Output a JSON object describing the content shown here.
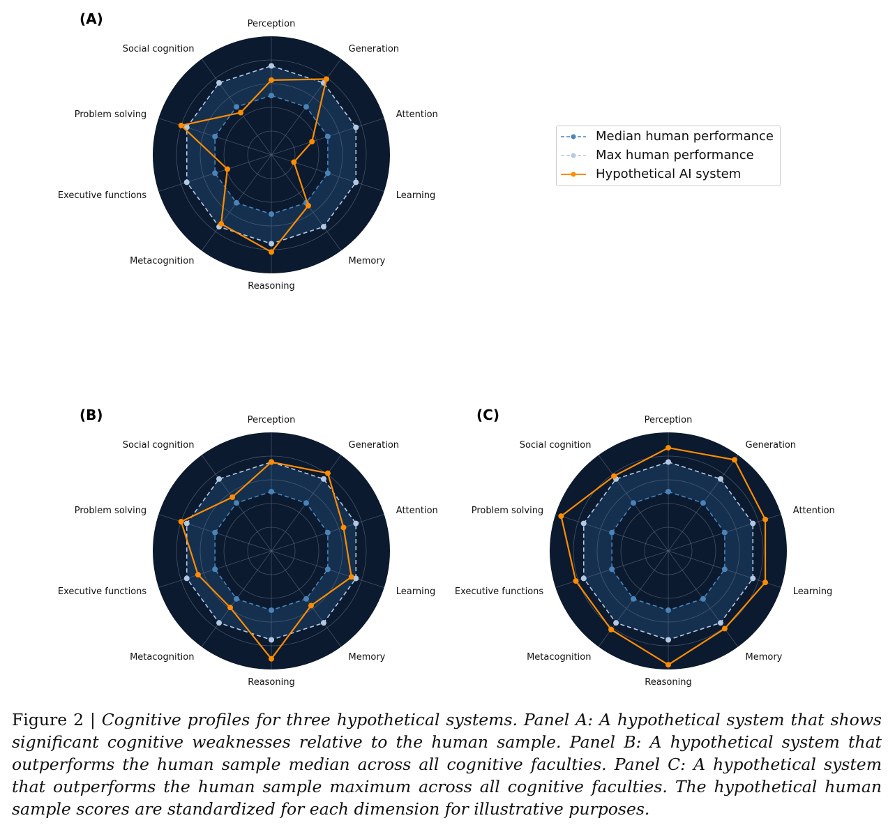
{
  "chart_data": [
    {
      "type": "radar",
      "panel": "(A)",
      "axes": [
        "Perception",
        "Generation",
        "Attention",
        "Learning",
        "Memory",
        "Reasoning",
        "Metacognition",
        "Executive functions",
        "Problem solving",
        "Social cognition"
      ],
      "rlim": [
        0,
        1
      ],
      "grid_rings": [
        0.2,
        0.4,
        0.6,
        0.8
      ],
      "series": [
        {
          "name": "Median human performance",
          "values": [
            0.5,
            0.5,
            0.5,
            0.5,
            0.5,
            0.5,
            0.5,
            0.5,
            0.5,
            0.5
          ]
        },
        {
          "name": "Max human performance",
          "values": [
            0.75,
            0.75,
            0.75,
            0.75,
            0.75,
            0.75,
            0.75,
            0.75,
            0.75,
            0.75
          ]
        },
        {
          "name": "Hypothetical AI system",
          "values": [
            0.63,
            0.79,
            0.36,
            0.2,
            0.53,
            0.82,
            0.72,
            0.39,
            0.8,
            0.44
          ]
        }
      ]
    },
    {
      "type": "radar",
      "panel": "(B)",
      "axes": [
        "Perception",
        "Generation",
        "Attention",
        "Learning",
        "Memory",
        "Reasoning",
        "Metacognition",
        "Executive functions",
        "Problem solving",
        "Social cognition"
      ],
      "rlim": [
        0,
        1
      ],
      "grid_rings": [
        0.2,
        0.4,
        0.6,
        0.8
      ],
      "series": [
        {
          "name": "Median human performance",
          "values": [
            0.5,
            0.5,
            0.5,
            0.5,
            0.5,
            0.5,
            0.5,
            0.5,
            0.5,
            0.5
          ]
        },
        {
          "name": "Max human performance",
          "values": [
            0.75,
            0.75,
            0.75,
            0.75,
            0.75,
            0.75,
            0.75,
            0.75,
            0.75,
            0.75
          ]
        },
        {
          "name": "Hypothetical AI system",
          "values": [
            0.75,
            0.81,
            0.64,
            0.71,
            0.57,
            0.91,
            0.59,
            0.65,
            0.8,
            0.56
          ]
        }
      ]
    },
    {
      "type": "radar",
      "panel": "(C)",
      "axes": [
        "Perception",
        "Generation",
        "Attention",
        "Learning",
        "Memory",
        "Reasoning",
        "Metacognition",
        "Executive functions",
        "Problem solving",
        "Social cognition"
      ],
      "rlim": [
        0,
        1
      ],
      "grid_rings": [
        0.2,
        0.4,
        0.6,
        0.8
      ],
      "series": [
        {
          "name": "Median human performance",
          "values": [
            0.5,
            0.5,
            0.5,
            0.5,
            0.5,
            0.5,
            0.5,
            0.5,
            0.5,
            0.5
          ]
        },
        {
          "name": "Max human performance",
          "values": [
            0.75,
            0.75,
            0.75,
            0.75,
            0.75,
            0.75,
            0.75,
            0.75,
            0.75,
            0.75
          ]
        },
        {
          "name": "Hypothetical AI system",
          "values": [
            0.87,
            0.95,
            0.86,
            0.86,
            0.81,
            0.96,
            0.82,
            0.82,
            0.95,
            0.78
          ]
        }
      ]
    }
  ],
  "legend": {
    "placement": "right of panel A",
    "entries": [
      "Median human performance",
      "Max human performance",
      "Hypothetical AI system"
    ]
  },
  "colors": {
    "background": "#0b1a2e",
    "band": "#15304f",
    "grid": "#5a6a7e",
    "median": "#4a83b8",
    "max": "#b3c8e2",
    "ai": "#ff8c00"
  },
  "caption": {
    "lead": "Figure 2 | ",
    "text": "Cognitive profiles for three hypothetical systems. Panel A: A hypothetical system that shows significant cognitive weaknesses relative to the human sample. Panel B: A hypothetical system that outperforms the human sample median across all cognitive faculties. Panel C: A hypothetical system that outperforms the human sample maximum across all cognitive faculties. The hypothetical human sample scores are standardized for each dimension for illustrative purposes."
  }
}
